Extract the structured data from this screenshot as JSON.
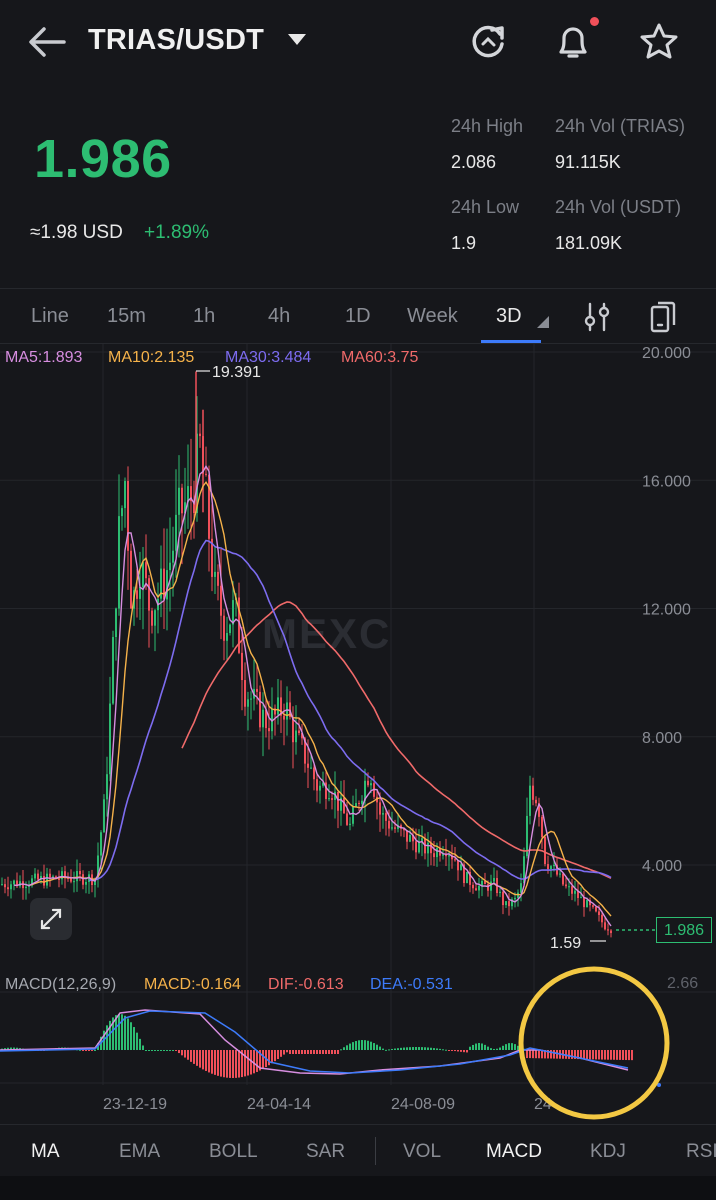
{
  "header": {
    "pair": "TRIAS/USDT",
    "back_icon": "arrow-left-icon",
    "icons": [
      "refresh-icon",
      "bell-icon",
      "star-icon"
    ]
  },
  "ticker": {
    "last_price": "1.986",
    "usd_approx": "≈1.98 USD",
    "change_pct": "+1.89%",
    "high_label": "24h High",
    "high_value": "2.086",
    "low_label": "24h Low",
    "low_value": "1.9",
    "vol_base_label": "24h Vol (TRIAS)",
    "vol_base_value": "91.115K",
    "vol_quote_label": "24h Vol  (USDT)",
    "vol_quote_value": "181.09K"
  },
  "timeframes": {
    "tabs": [
      "Line",
      "15m",
      "1h",
      "4h",
      "1D",
      "Week",
      "3D"
    ],
    "active": "3D",
    "tool_icons": [
      "indicator-settings-icon",
      "copy-icon"
    ]
  },
  "chart": {
    "watermark": "MEXC",
    "ma5": "MA5:1.893",
    "ma10": "MA10:2.135",
    "ma30": "MA30:3.484",
    "ma60": "MA60:3.75",
    "max_label": "19.391",
    "min_label": "1.59",
    "last_price_tag": "1.986",
    "y_ticks": [
      "20.000",
      "16.000",
      "12.000",
      "8.000",
      "4.000"
    ],
    "macd_scale": "2.66",
    "x_ticks": [
      "23-12-19",
      "24-04-14",
      "24-08-09",
      "24"
    ],
    "macd_title": "MACD(12,26,9)",
    "macd": "MACD:-0.164",
    "dif": "DIF:-0.613",
    "dea": "DEA:-0.531",
    "colors": {
      "up": "#2dbd72",
      "down": "#f0505a",
      "ma5": "#d78ee0",
      "ma10": "#f5b24a",
      "ma30": "#7d6cf0",
      "ma60": "#f06a6a",
      "dea": "#3d7bfa",
      "highlight": "#f3c843"
    }
  },
  "indicators": {
    "tabs": [
      "MA",
      "EMA",
      "BOLL",
      "SAR",
      "VOL",
      "MACD",
      "KDJ",
      "RSI"
    ],
    "active": [
      "MA",
      "MACD"
    ]
  }
}
